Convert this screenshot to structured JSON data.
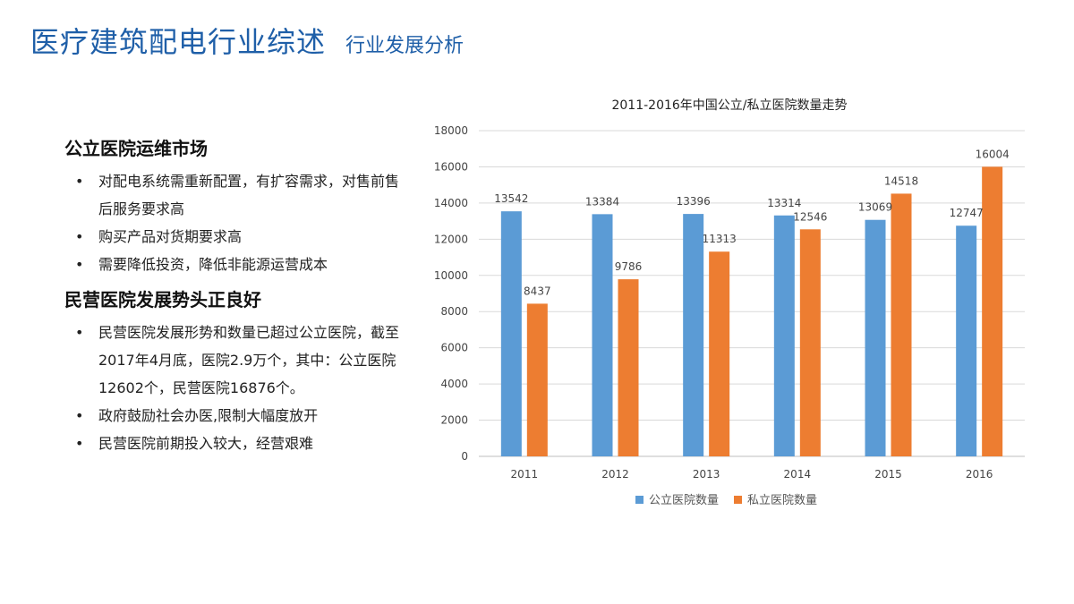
{
  "header": {
    "title": "医疗建筑配电行业综述",
    "subtitle": "行业发展分析"
  },
  "sections": [
    {
      "title": "公立医院运维市场",
      "bullets": [
        "对配电系统需重新配置，有扩容需求，对售前售后服务要求高",
        "购买产品对货期要求高",
        "需要降低投资，降低非能源运营成本"
      ]
    },
    {
      "title": "民营医院发展势头正良好",
      "bullets": [
        "民营医院发展形势和数量已超过公立医院，截至2017年4月底，医院2.9万个，其中：公立医院12602个，民营医院16876个。",
        "政府鼓励社会办医,限制大幅度放开",
        "民营医院前期投入较大，经营艰难"
      ]
    }
  ],
  "chart_data": {
    "type": "bar",
    "title": "2011-2016年中国公立/私立医院数量走势",
    "categories": [
      "2011",
      "2012",
      "2013",
      "2014",
      "2015",
      "2016"
    ],
    "series": [
      {
        "name": "公立医院数量",
        "color": "#5b9bd5",
        "values": [
          13542,
          13384,
          13396,
          13314,
          13069,
          12747
        ]
      },
      {
        "name": "私立医院数量",
        "color": "#ed7d31",
        "values": [
          8437,
          9786,
          11313,
          12546,
          14518,
          16004
        ]
      }
    ],
    "ylim": [
      0,
      18000
    ],
    "yticks": [
      0,
      2000,
      4000,
      6000,
      8000,
      10000,
      12000,
      14000,
      16000,
      18000
    ],
    "grid": true,
    "legend": "bottom"
  }
}
